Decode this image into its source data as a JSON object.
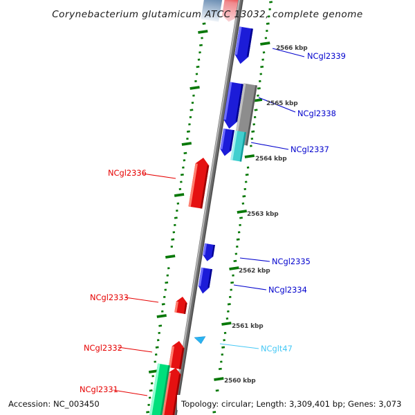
{
  "title": "Corynebacterium glutamicum ATCC 13032, complete genome",
  "palette": {
    "page-bg": "#ffffff",
    "gene-blue": "#1c1cd8",
    "gene-blue-light": "#6f6fff",
    "gene-blue-dark": "#000090",
    "gene-red": "#e51111",
    "gene-red-light": "#ff8070",
    "gene-red-dark": "#9c0303",
    "gene-gray": "#8d8d8d",
    "gene-gray-light": "#c2c2c2",
    "gene-gray-dark": "#5a5a5a",
    "gene-cyan": "#41cfcf",
    "gene-cyan-light": "#a2efef",
    "gene-cyan-dark": "#129c9c",
    "gene-green": "#00df7c",
    "gene-green-light": "#90ffd2",
    "gene-green-dark": "#00a158",
    "gene-steel": "#5b80a8",
    "trna-blue": "#2ab3f0",
    "label-blue": "#0000cd",
    "label-red": "#e60000",
    "label-cyan": "#45c8f5",
    "tick-green": "#077807",
    "axis-gray": "#6e6e6e",
    "axis-light": "#b5b5b5",
    "axis-dark": "#4d4d4d",
    "ruler-text": "#3c3c3c",
    "text-dark": "#0e0e0e"
  },
  "ruler": {
    "ticks": [
      "2566 kbp",
      "2565 kbp",
      "2564 kbp",
      "2563 kbp",
      "2562 kbp",
      "2561 kbp",
      "2560 kbp"
    ]
  },
  "genes": [
    {
      "name": "NCgl2339"
    },
    {
      "name": "NCgl2338"
    },
    {
      "name": "NCgl2337"
    },
    {
      "name": "NCgl2336"
    },
    {
      "name": "NCgl2335"
    },
    {
      "name": "NCgl2334"
    },
    {
      "name": "NCgl2333"
    },
    {
      "name": "NCgl2332"
    },
    {
      "name": "NCglt47"
    },
    {
      "name": "NCgl2331"
    }
  ],
  "status_bar": {
    "accession": "Accession: NC_003450",
    "topology": "Topology: circular; Length: 3,309,401 bp; Genes: 3,073"
  }
}
